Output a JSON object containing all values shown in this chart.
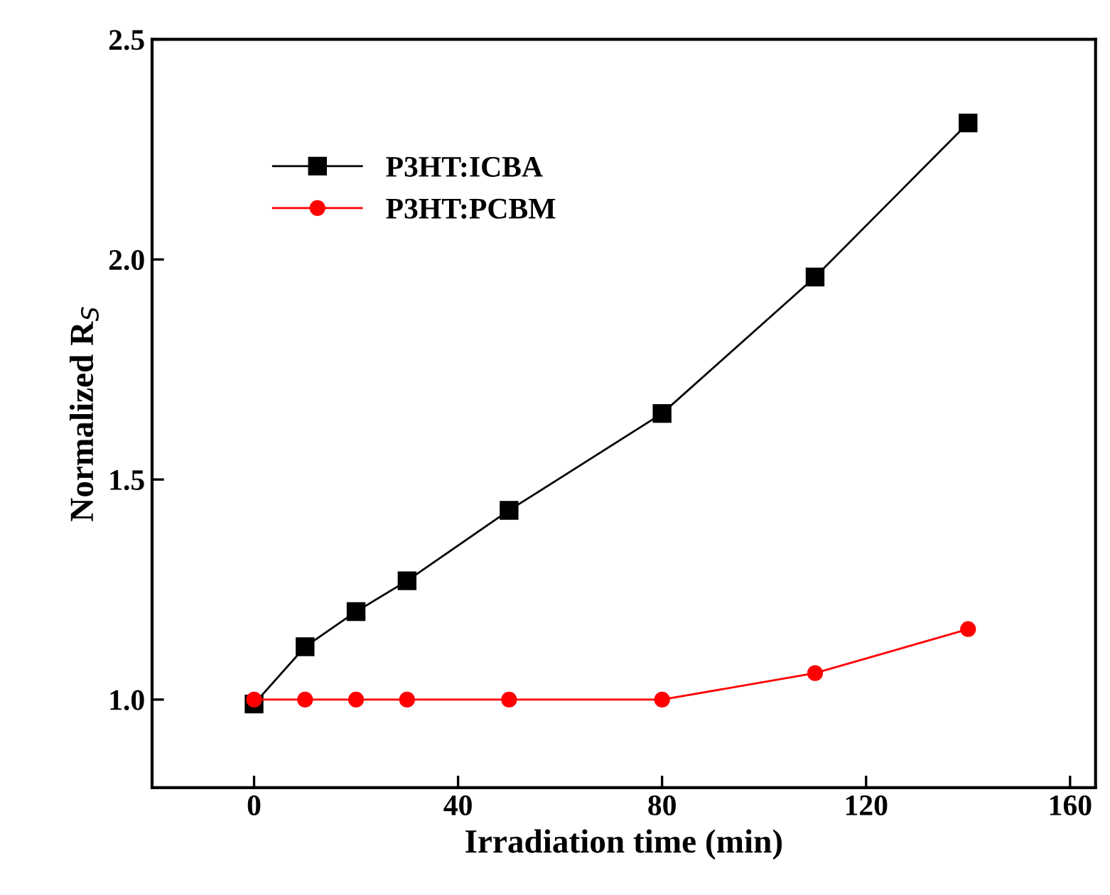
{
  "chart_data": {
    "type": "line",
    "xlabel": "Irradiation time (min)",
    "ylabel": "Normalized R$_{S}$",
    "x": [
      0,
      10,
      20,
      30,
      50,
      80,
      110,
      140
    ],
    "series": [
      {
        "name": "P3HT:ICBA",
        "color": "#000000",
        "marker": "square",
        "values": [
          0.99,
          1.12,
          1.2,
          1.27,
          1.43,
          1.65,
          1.96,
          2.31
        ]
      },
      {
        "name": "P3HT:PCBM",
        "color": "#ff0000",
        "marker": "circle",
        "values": [
          1.0,
          1.0,
          1.0,
          1.0,
          1.0,
          1.0,
          1.06,
          1.16
        ]
      }
    ],
    "xlim": [
      -20,
      165
    ],
    "xticks": [
      0,
      40,
      80,
      120,
      160
    ],
    "ylim": [
      0.8,
      2.5
    ],
    "yticks": [
      {
        "value": 1.0,
        "label": "1.0"
      },
      {
        "value": 1.5,
        "label": "1.5"
      },
      {
        "value": 2.0,
        "label": "2.0"
      },
      {
        "value": 2.5,
        "label": "2.5"
      }
    ],
    "legend": "top left",
    "grid": false,
    "line_style": "solid"
  }
}
